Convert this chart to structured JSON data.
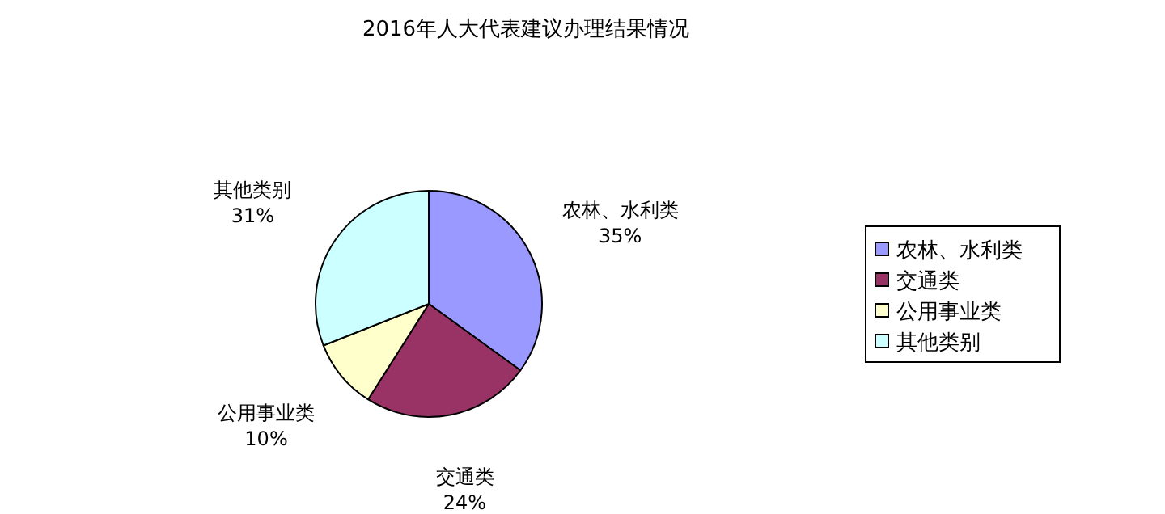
{
  "chart_data": {
    "type": "pie",
    "title": "2016年人大代表建议办理结果情况",
    "categories": [
      "农林、水利类",
      "交通类",
      "公用事业类",
      "其他类别"
    ],
    "values": [
      35,
      24,
      10,
      31
    ],
    "value_labels": [
      "35%",
      "24%",
      "10%",
      "31%"
    ],
    "colors": [
      "#9999ff",
      "#993366",
      "#ffffcc",
      "#ccffff"
    ],
    "legend": "right"
  }
}
